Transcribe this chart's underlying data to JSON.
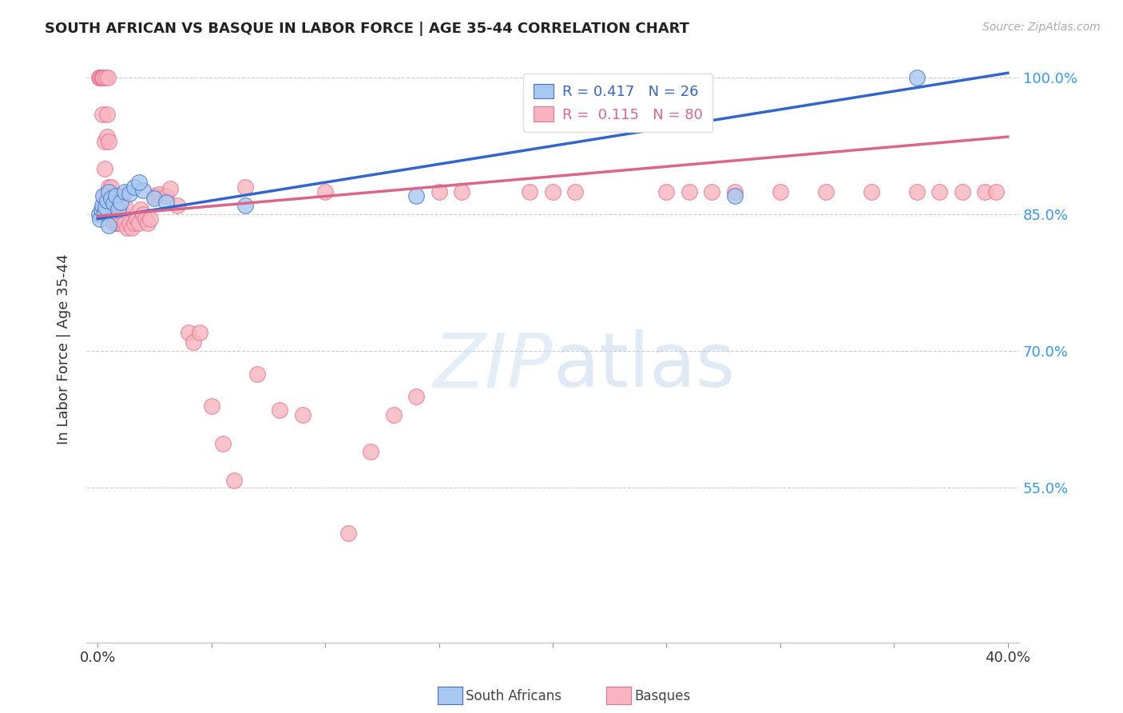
{
  "title": "SOUTH AFRICAN VS BASQUE IN LABOR FORCE | AGE 35-44 CORRELATION CHART",
  "source": "Source: ZipAtlas.com",
  "ylabel": "In Labor Force | Age 35-44",
  "legend_sa": "R = 0.417   N = 26",
  "legend_bq": "R =  0.115   N = 80",
  "blue_fill": "#a8c8f0",
  "blue_edge": "#4472c4",
  "pink_fill": "#f8b4c0",
  "pink_edge": "#e87090",
  "blue_line": "#3366cc",
  "pink_line": "#dd6688",
  "ytick_vals": [
    0.55,
    0.7,
    0.85,
    1.0
  ],
  "ytick_labels": [
    "55.0%",
    "70.0%",
    "85.0%",
    "100.0%"
  ],
  "ymin": 0.38,
  "ymax": 1.025,
  "xmin": -0.005,
  "xmax": 0.405,
  "blue_line_x": [
    0.0,
    0.4
  ],
  "blue_line_y": [
    0.845,
    1.005
  ],
  "pink_line_x": [
    0.0,
    0.4
  ],
  "pink_line_y": [
    0.848,
    0.935
  ],
  "sa_x": [
    0.0005,
    0.001,
    0.0015,
    0.002,
    0.0025,
    0.003,
    0.0035,
    0.004,
    0.005,
    0.006,
    0.007,
    0.008,
    0.009,
    0.01,
    0.012,
    0.014,
    0.016,
    0.02,
    0.025,
    0.03,
    0.065,
    0.14,
    0.28,
    0.36,
    0.005,
    0.018
  ],
  "sa_y": [
    0.85,
    0.845,
    0.855,
    0.86,
    0.87,
    0.852,
    0.858,
    0.865,
    0.875,
    0.868,
    0.862,
    0.87,
    0.855,
    0.863,
    0.875,
    0.873,
    0.88,
    0.876,
    0.868,
    0.863,
    0.86,
    0.87,
    0.87,
    1.0,
    0.838,
    0.885
  ],
  "bq_x": [
    0.0005,
    0.001,
    0.001,
    0.0015,
    0.002,
    0.002,
    0.002,
    0.0025,
    0.003,
    0.003,
    0.003,
    0.0035,
    0.004,
    0.004,
    0.0045,
    0.005,
    0.005,
    0.005,
    0.006,
    0.006,
    0.007,
    0.007,
    0.008,
    0.008,
    0.009,
    0.009,
    0.01,
    0.01,
    0.011,
    0.011,
    0.012,
    0.012,
    0.013,
    0.014,
    0.015,
    0.016,
    0.017,
    0.018,
    0.019,
    0.02,
    0.021,
    0.022,
    0.023,
    0.025,
    0.027,
    0.03,
    0.032,
    0.035,
    0.04,
    0.042,
    0.045,
    0.05,
    0.055,
    0.06,
    0.065,
    0.07,
    0.08,
    0.09,
    0.1,
    0.11,
    0.12,
    0.13,
    0.14,
    0.15,
    0.16,
    0.19,
    0.2,
    0.21,
    0.25,
    0.26,
    0.27,
    0.28,
    0.3,
    0.32,
    0.34,
    0.36,
    0.37,
    0.38,
    0.39,
    0.395
  ],
  "bq_y": [
    1.0,
    1.0,
    1.0,
    1.0,
    1.0,
    0.96,
    1.0,
    1.0,
    0.87,
    0.9,
    0.93,
    1.0,
    0.935,
    0.96,
    1.0,
    0.87,
    0.88,
    0.93,
    0.85,
    0.88,
    0.84,
    0.87,
    0.84,
    0.86,
    0.84,
    0.865,
    0.84,
    0.87,
    0.85,
    0.87,
    0.84,
    0.86,
    0.835,
    0.84,
    0.835,
    0.84,
    0.845,
    0.84,
    0.855,
    0.85,
    0.845,
    0.84,
    0.845,
    0.87,
    0.872,
    0.87,
    0.878,
    0.86,
    0.72,
    0.71,
    0.72,
    0.64,
    0.598,
    0.558,
    0.88,
    0.675,
    0.635,
    0.63,
    0.875,
    0.5,
    0.59,
    0.63,
    0.65,
    0.875,
    0.875,
    0.875,
    0.875,
    0.875,
    0.875,
    0.875,
    0.875,
    0.875,
    0.875,
    0.875,
    0.875,
    0.875,
    0.875,
    0.875,
    0.875,
    0.875
  ]
}
